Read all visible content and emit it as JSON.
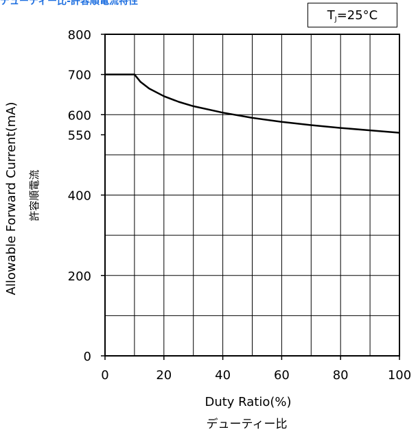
{
  "title": "デューティー比-許容順電流特性",
  "condition": {
    "symbol": "T",
    "subscript": "J",
    "value": "=25°C"
  },
  "chart_data": {
    "type": "line",
    "title": "デューティー比-許容順電流特性",
    "xlabel": "Duty Ratio(%)",
    "xlabel_jp": "デューティー比",
    "ylabel": "Allowable Forward Current(mA)",
    "ylabel_jp": "許容順電流",
    "xlim": [
      0,
      100
    ],
    "ylim": [
      0,
      800
    ],
    "x_ticks": [
      0,
      20,
      40,
      60,
      80,
      100
    ],
    "y_ticks": [
      0,
      200,
      400,
      550,
      600,
      700,
      800
    ],
    "grid": true,
    "x_gridlines": [
      10,
      20,
      30,
      40,
      50,
      60,
      70,
      80,
      90
    ],
    "y_gridlines": [
      100,
      200,
      300,
      400,
      500,
      600,
      700
    ],
    "series": [
      {
        "x": [
          0,
          10,
          12,
          15,
          20,
          25,
          30,
          40,
          50,
          60,
          70,
          80,
          90,
          100
        ],
        "y": [
          700,
          700,
          682,
          665,
          646,
          632,
          621,
          605,
          592,
          582,
          574,
          567,
          561,
          555
        ],
        "color": "#000000"
      }
    ]
  }
}
